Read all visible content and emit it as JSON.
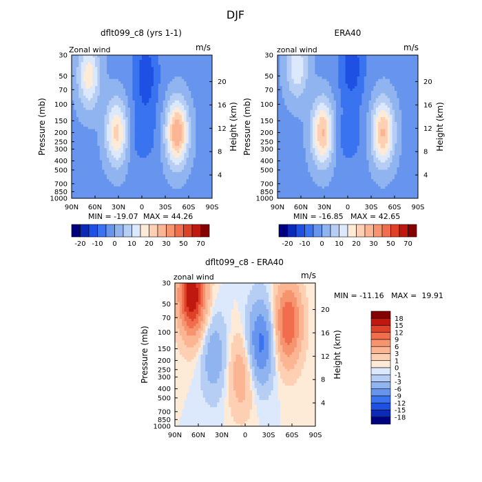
{
  "chart_data": {
    "title": "DJF",
    "panels": [
      {
        "type": "heatmap",
        "subtype": "filled-contour",
        "title": "dflt099_c8 (yrs 1-1)",
        "left_string": "Zonal wind",
        "right_string": "m/s",
        "ylabel": "Pressure (mb)",
        "y2label": "Height (km)",
        "x_ticks": [
          "90N",
          "60N",
          "30N",
          "0",
          "30S",
          "60S",
          "90S"
        ],
        "y_ticks": [
          "30",
          "50",
          "70",
          "100",
          "150",
          "200",
          "250",
          "300",
          "400",
          "500",
          "700",
          "850",
          "1000"
        ],
        "y2_ticks": [
          "4",
          "8",
          "12",
          "16",
          "20"
        ],
        "min_label": "MIN = -19.07",
        "max_label": "MAX =  44.26",
        "min": -19.07,
        "max": 44.26,
        "colorbar": {
          "orientation": "horizontal",
          "levels": [
            "-20",
            "-10",
            "0",
            "10",
            "20",
            "30",
            "50",
            "70"
          ],
          "colors": [
            "#00007e",
            "#0c2ab8",
            "#1e50e4",
            "#3a73f0",
            "#6795ee",
            "#90b4f0",
            "#b7cef4",
            "#dce8fb",
            "#fdebd8",
            "#fdd0b4",
            "#fbb592",
            "#f79470",
            "#f06d4d",
            "#de4128",
            "#bf190f",
            "#850000"
          ]
        },
        "features": [
          {
            "type": "jet",
            "value": 30,
            "lat": 32,
            "pressure": 200
          },
          {
            "type": "jet",
            "value": 40,
            "lat": -45,
            "pressure": 200
          },
          {
            "type": "jet",
            "value": 25,
            "lat": 68,
            "pressure": 50
          },
          {
            "type": "easterly",
            "value": -15,
            "lat": -5,
            "pressure": 50
          }
        ]
      },
      {
        "type": "heatmap",
        "subtype": "filled-contour",
        "title": "ERA40",
        "left_string": "zonal wind",
        "right_string": "m/s",
        "ylabel": "Pressure (mb)",
        "y2label": "Height (km)",
        "x_ticks": [
          "90N",
          "60N",
          "30N",
          "0",
          "30S",
          "60S",
          "90S"
        ],
        "y_ticks": [
          "30",
          "50",
          "70",
          "100",
          "150",
          "200",
          "250",
          "300",
          "400",
          "500",
          "700",
          "850",
          "1000"
        ],
        "y2_ticks": [
          "4",
          "8",
          "12",
          "16",
          "20"
        ],
        "min_label": "MIN = -16.85",
        "max_label": "MAX =  42.65",
        "min": -16.85,
        "max": 42.65,
        "colorbar": {
          "orientation": "horizontal",
          "levels": [
            "-20",
            "-10",
            "0",
            "10",
            "20",
            "30",
            "50",
            "70"
          ],
          "colors": [
            "#00007e",
            "#0c2ab8",
            "#1e50e4",
            "#3a73f0",
            "#6795ee",
            "#90b4f0",
            "#b7cef4",
            "#dce8fb",
            "#fdebd8",
            "#fdd0b4",
            "#fbb592",
            "#f79470",
            "#f06d4d",
            "#de4128",
            "#bf190f",
            "#850000"
          ]
        },
        "features": [
          {
            "type": "jet",
            "value": 35,
            "lat": 32,
            "pressure": 200
          },
          {
            "type": "jet",
            "value": 35,
            "lat": -45,
            "pressure": 200
          },
          {
            "type": "jet",
            "value": 20,
            "lat": 65,
            "pressure": 40
          },
          {
            "type": "easterly",
            "value": -15,
            "lat": -5,
            "pressure": 40
          }
        ]
      },
      {
        "type": "heatmap",
        "subtype": "filled-contour",
        "title": "dflt099_c8 - ERA40",
        "left_string": "zonal wind",
        "right_string": "m/s",
        "ylabel": "Pressure (mb)",
        "y2label": "Height (km)",
        "x_ticks": [
          "90N",
          "60N",
          "30N",
          "0",
          "30S",
          "60S",
          "90S"
        ],
        "y_ticks": [
          "30",
          "50",
          "70",
          "100",
          "150",
          "200",
          "250",
          "300",
          "400",
          "500",
          "700",
          "850",
          "1000"
        ],
        "y2_ticks": [
          "4",
          "8",
          "12",
          "16",
          "20"
        ],
        "minmax_label": "MIN = -11.16   MAX =  19.91",
        "min": -11.16,
        "max": 19.91,
        "colorbar": {
          "orientation": "vertical",
          "levels": [
            "18",
            "15",
            "12",
            "9",
            "6",
            "3",
            "1",
            "0",
            "-1",
            "-3",
            "-6",
            "-9",
            "-12",
            "-15",
            "-18"
          ],
          "colors": [
            "#850000",
            "#bf190f",
            "#de4128",
            "#f06d4d",
            "#f79470",
            "#fbb592",
            "#fdd0b4",
            "#fdebd8",
            "#dce8fb",
            "#b7cef4",
            "#90b4f0",
            "#6795ee",
            "#3a73f0",
            "#1e50e4",
            "#0c2ab8",
            "#00007e"
          ]
        },
        "features": [
          {
            "type": "positive",
            "value": 18,
            "lat": 68,
            "pressure": 40
          },
          {
            "type": "positive",
            "value": 12,
            "lat": -55,
            "pressure": 80
          },
          {
            "type": "negative",
            "value": -10,
            "lat": -20,
            "pressure": 130
          },
          {
            "type": "negative",
            "value": -5,
            "lat": 40,
            "pressure": 180
          },
          {
            "type": "positive",
            "value": 5,
            "lat": 5,
            "pressure": 280
          }
        ]
      }
    ]
  }
}
